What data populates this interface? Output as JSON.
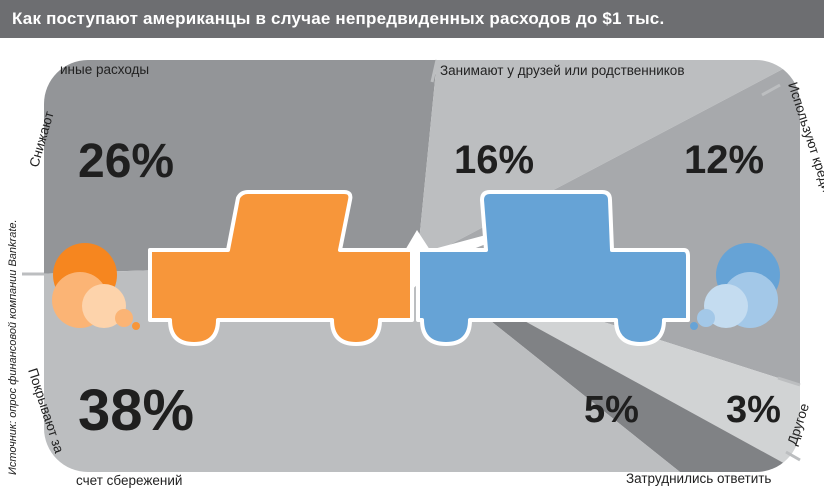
{
  "title": "Как поступают американцы в случае непредвиденных расходов до $1 тыс.",
  "source": "Источник: опрос финансовой компании Bankrate.",
  "colors": {
    "title_bg": "#6d6e71",
    "orange": "#f7963a",
    "blue": "#66a3d6",
    "dark_gray": "#939598",
    "mid_gray": "#a7a9ac",
    "light_gray": "#bcbec0",
    "pale_gray": "#d1d3d4",
    "darker_gray": "#808285"
  },
  "chart_data": {
    "type": "pie",
    "slices": [
      {
        "label": "Снижают иные расходы",
        "value": 26,
        "value_label": "26%"
      },
      {
        "label": "Занимают у друзей или родственников",
        "value": 16,
        "value_label": "16%"
      },
      {
        "label": "Используют кредитную карту",
        "value": 12,
        "value_label": "12%"
      },
      {
        "label": "Другое",
        "value": 3,
        "value_label": "3%"
      },
      {
        "label": "Затруднились ответить",
        "value": 5,
        "value_label": "5%"
      },
      {
        "label": "Покрывают за счет сбережений",
        "value": 38,
        "value_label": "38%"
      }
    ]
  }
}
